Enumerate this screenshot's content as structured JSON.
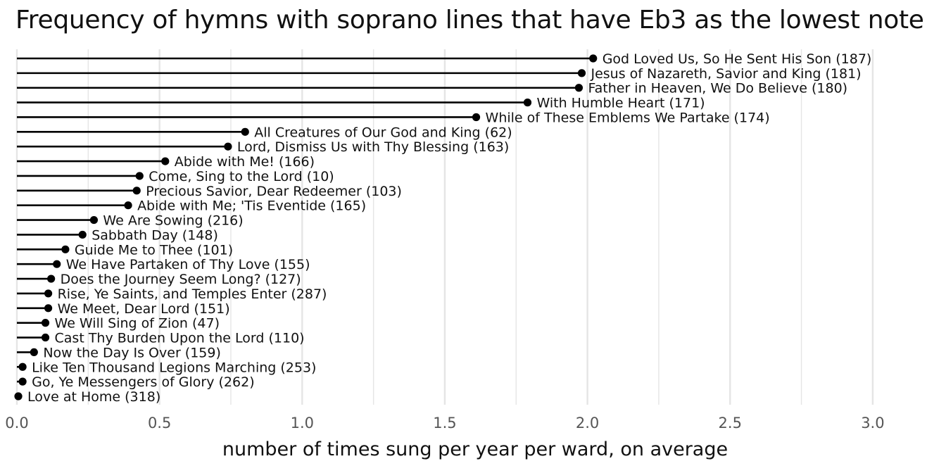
{
  "chart_data": {
    "type": "lollipop",
    "title": "Frequency of hymns with soprano lines that have Eb3 as the lowest note",
    "xlabel": "number of times sung per year per ward, on average",
    "ylabel": "",
    "xlim": [
      0,
      3.1
    ],
    "x_ticks": [
      0.0,
      0.5,
      1.0,
      1.5,
      2.0,
      2.5,
      3.0
    ],
    "x_tick_labels": [
      "0.0",
      "0.5",
      "1.0",
      "1.5",
      "2.0",
      "2.5",
      "3.0"
    ],
    "grid": "vertical",
    "colors": {
      "marks": "#000000",
      "grid": "#e5e5e5",
      "tick_text": "#555555"
    },
    "items": [
      {
        "label": "God Loved Us, So He Sent His Son (187)",
        "value": 2.02
      },
      {
        "label": "Jesus of Nazareth, Savior and King (181)",
        "value": 1.98
      },
      {
        "label": "Father in Heaven, We Do Believe (180)",
        "value": 1.97
      },
      {
        "label": "With Humble Heart (171)",
        "value": 1.79
      },
      {
        "label": "While of These Emblems We Partake (174)",
        "value": 1.61
      },
      {
        "label": "All Creatures of Our God and King (62)",
        "value": 0.8
      },
      {
        "label": "Lord, Dismiss Us with Thy Blessing (163)",
        "value": 0.74
      },
      {
        "label": "Abide with Me! (166)",
        "value": 0.52
      },
      {
        "label": "Come, Sing to the Lord (10)",
        "value": 0.43
      },
      {
        "label": "Precious Savior, Dear Redeemer (103)",
        "value": 0.42
      },
      {
        "label": "Abide with Me; 'Tis Eventide (165)",
        "value": 0.39
      },
      {
        "label": "We Are Sowing (216)",
        "value": 0.27
      },
      {
        "label": "Sabbath Day (148)",
        "value": 0.23
      },
      {
        "label": "Guide Me to Thee (101)",
        "value": 0.17
      },
      {
        "label": "We Have Partaken of Thy Love (155)",
        "value": 0.14
      },
      {
        "label": "Does the Journey Seem Long? (127)",
        "value": 0.12
      },
      {
        "label": "Rise, Ye Saints, and Temples Enter (287)",
        "value": 0.11
      },
      {
        "label": "We Meet, Dear Lord (151)",
        "value": 0.11
      },
      {
        "label": "We Will Sing of Zion (47)",
        "value": 0.1
      },
      {
        "label": "Cast Thy Burden Upon the Lord (110)",
        "value": 0.1
      },
      {
        "label": "Now the Day Is Over (159)",
        "value": 0.06
      },
      {
        "label": "Like Ten Thousand Legions Marching (253)",
        "value": 0.02
      },
      {
        "label": "Go, Ye Messengers of Glory (262)",
        "value": 0.02
      },
      {
        "label": "Love at Home (318)",
        "value": 0.005
      }
    ]
  }
}
